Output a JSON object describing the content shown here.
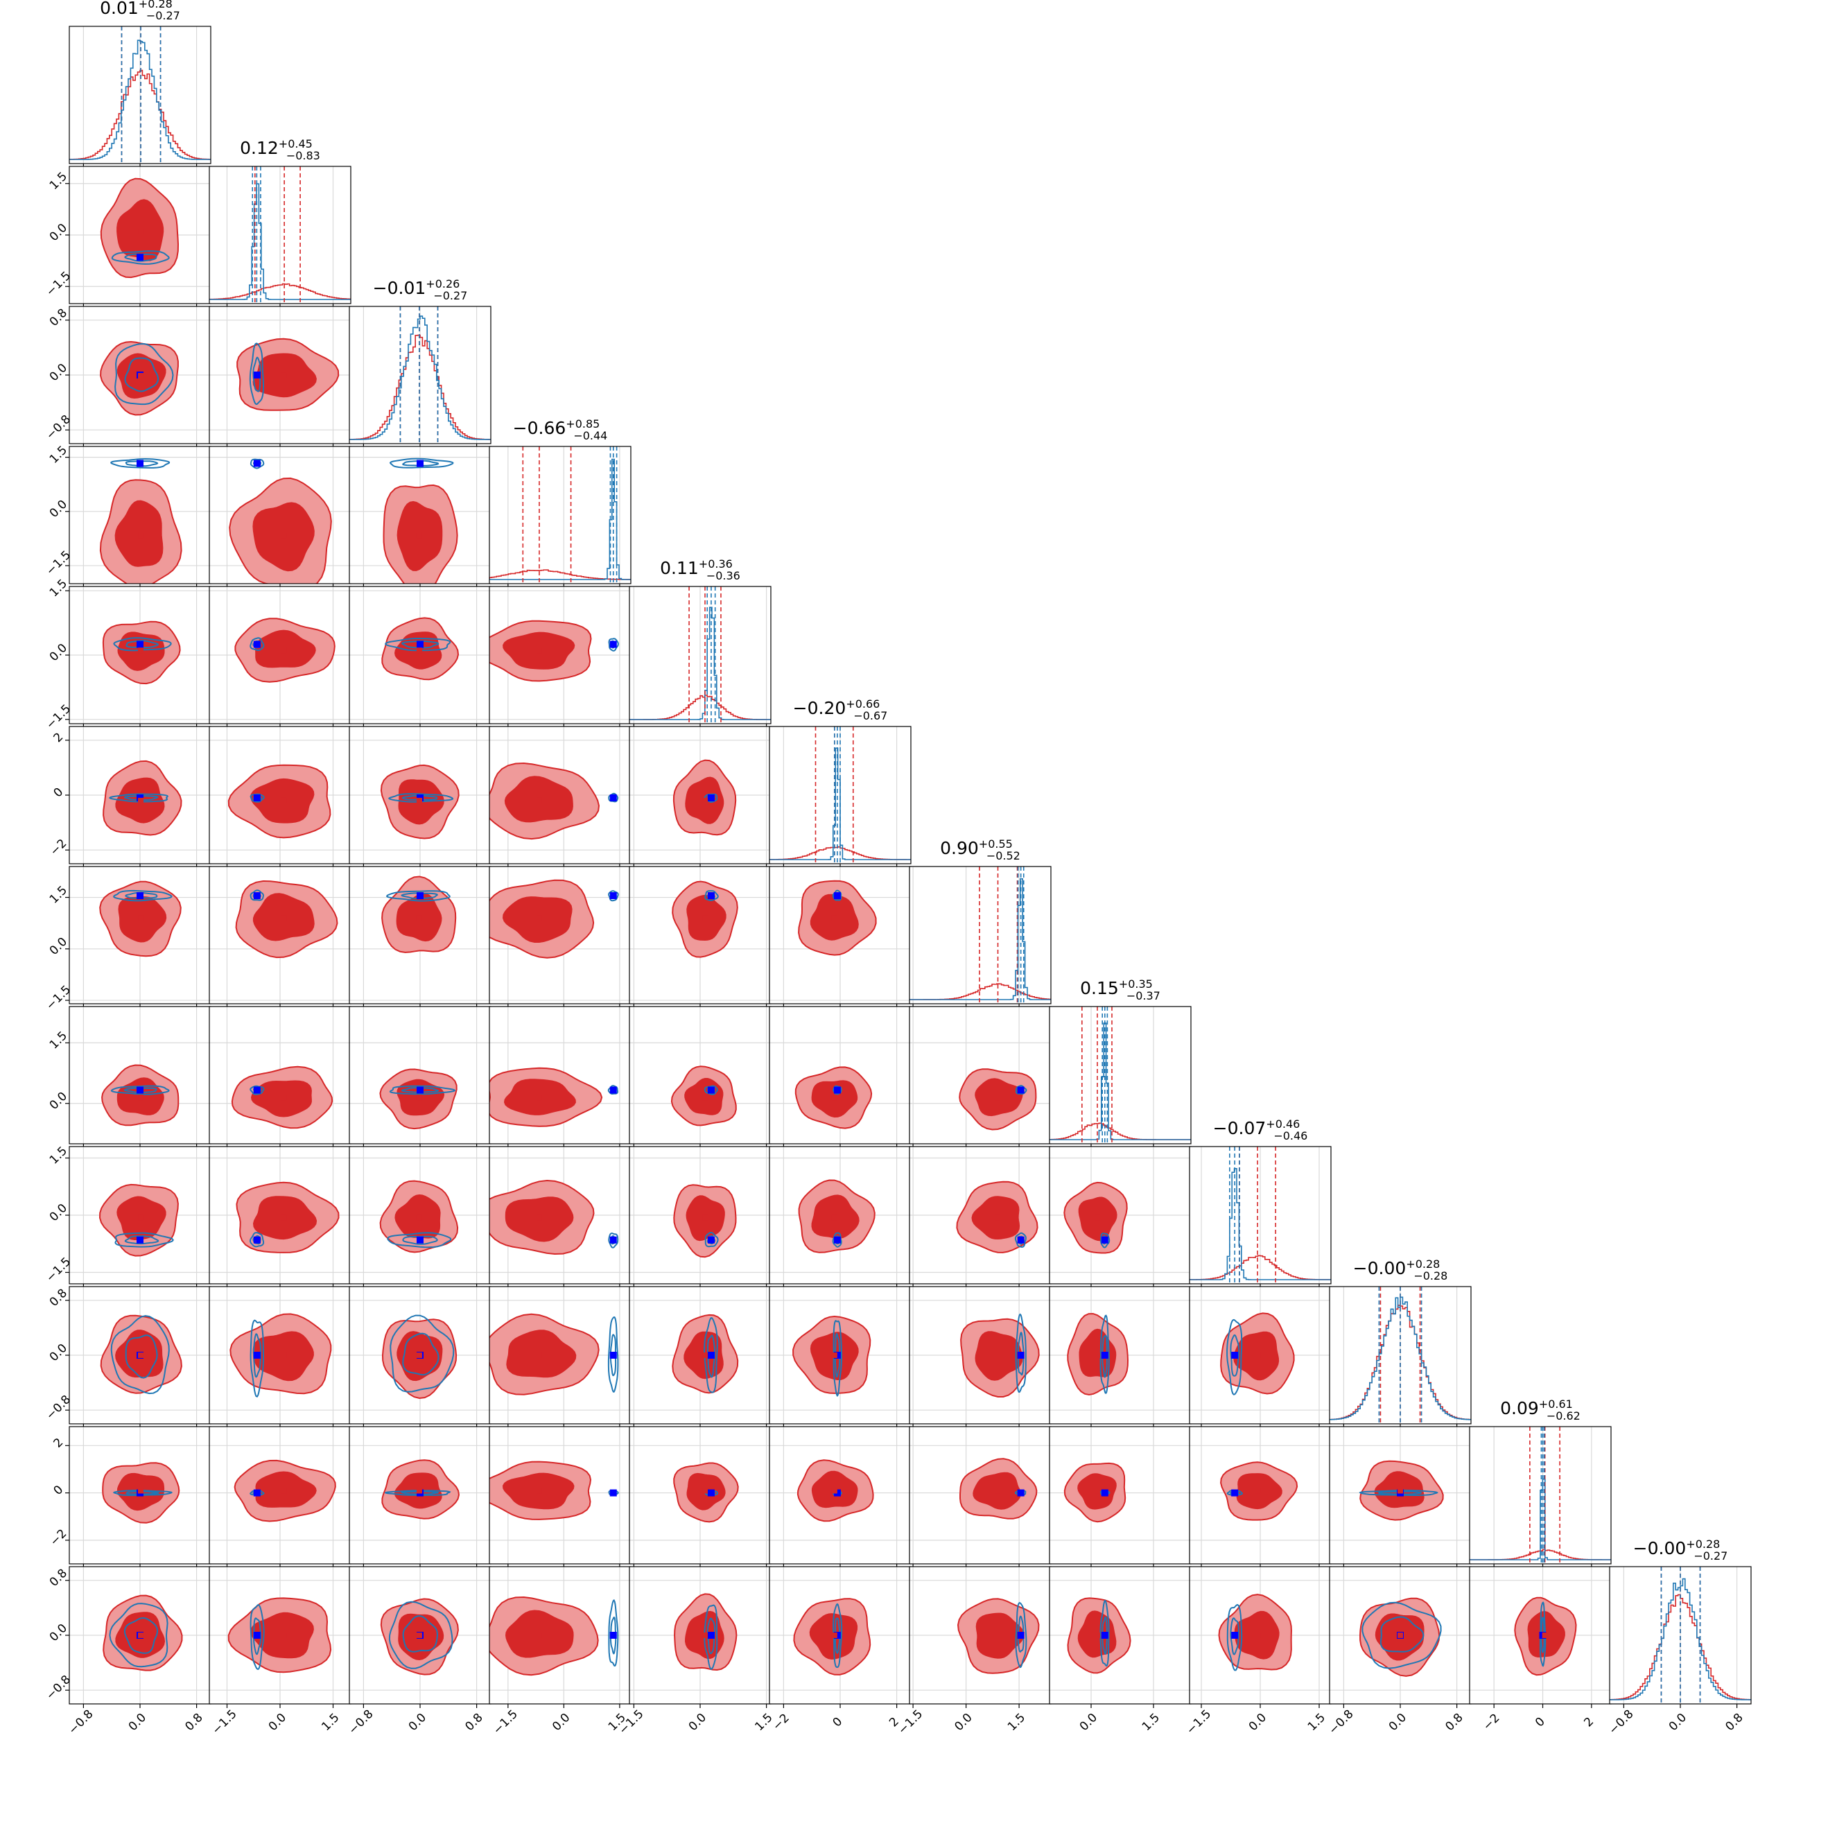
{
  "chart_data": {
    "type": "corner",
    "n_params": 12,
    "colors": {
      "posterior_a": "#d62728",
      "posterior_a_inner": "#d62728",
      "posterior_a_outer": "#ef9a9a",
      "posterior_b": "#1f77b4",
      "truth_marker": "#0000ff",
      "grid": "#d9d9d9"
    },
    "grid": true,
    "series": [
      {
        "style": "filled contours + step histogram + dashed quantiles",
        "color": "#d62728"
      },
      {
        "style": "line contours + step histogram + dashed quantiles",
        "color": "#1f77b4"
      }
    ],
    "titles": [
      {
        "median": "0.01",
        "plus": "+0.28",
        "minus": "−0.27"
      },
      {
        "median": "0.12",
        "plus": "+0.45",
        "minus": "−0.83"
      },
      {
        "median": "−0.01",
        "plus": "+0.26",
        "minus": "−0.27"
      },
      {
        "median": "−0.66",
        "plus": "+0.85",
        "minus": "−0.44"
      },
      {
        "median": "0.11",
        "plus": "+0.36",
        "minus": "−0.36"
      },
      {
        "median": "−0.20",
        "plus": "+0.66",
        "minus": "−0.67"
      },
      {
        "median": "0.90",
        "plus": "+0.55",
        "minus": "−0.52"
      },
      {
        "median": "0.15",
        "plus": "+0.35",
        "minus": "−0.37"
      },
      {
        "median": "−0.07",
        "plus": "+0.46",
        "minus": "−0.46"
      },
      {
        "median": "−0.00",
        "plus": "+0.28",
        "minus": "−0.28"
      },
      {
        "median": "0.09",
        "plus": "+0.61",
        "minus": "−0.62"
      },
      {
        "median": "−0.00",
        "plus": "+0.28",
        "minus": "−0.27"
      }
    ],
    "params": [
      {
        "range": [
          -1.0,
          1.0
        ],
        "ticks": [
          -0.8,
          0.0,
          0.8
        ],
        "tick_labels": [
          "−0.8",
          "0.0",
          "0.8"
        ],
        "red": {
          "mean": 0.01,
          "sd": 0.27
        },
        "blue": {
          "mean": 0.02,
          "sd": 0.2
        },
        "red_q": [
          -0.26,
          0.01,
          0.29
        ],
        "blue_q": [
          -0.26,
          0.01,
          0.29
        ],
        "truth": 0.0
      },
      {
        "range": [
          -2.0,
          2.0
        ],
        "ticks": [
          -1.5,
          0.0,
          1.5
        ],
        "tick_labels": [
          "−1.5",
          "0.0",
          "1.5"
        ],
        "red": {
          "mean": 0.1,
          "sd": 0.7
        },
        "blue": {
          "mean": -0.65,
          "sd": 0.09
        },
        "red_q": [
          -0.71,
          0.12,
          0.57
        ],
        "blue_q": [
          -0.78,
          -0.66,
          -0.55
        ],
        "truth": -0.65
      },
      {
        "range": [
          -1.0,
          1.0
        ],
        "ticks": [
          -0.8,
          0.0,
          0.8
        ],
        "tick_labels": [
          "−0.8",
          "0.0",
          "0.8"
        ],
        "red": {
          "mean": -0.01,
          "sd": 0.26
        },
        "blue": {
          "mean": 0.0,
          "sd": 0.22
        },
        "red_q": [
          -0.28,
          -0.01,
          0.25
        ],
        "blue_q": [
          -0.28,
          -0.01,
          0.25
        ],
        "truth": 0.0
      },
      {
        "range": [
          -2.0,
          1.8
        ],
        "ticks": [
          -1.5,
          0.0,
          1.5
        ],
        "tick_labels": [
          "−1.5",
          "0.0",
          "1.5"
        ],
        "red": {
          "mean": -0.66,
          "sd": 0.75
        },
        "blue": {
          "mean": 1.33,
          "sd": 0.06
        },
        "red_q": [
          -1.1,
          -0.66,
          0.19
        ],
        "blue_q": [
          1.25,
          1.33,
          1.42
        ],
        "truth": 1.33
      },
      {
        "range": [
          -1.6,
          1.6
        ],
        "ticks": [
          -1.5,
          0.0,
          1.5
        ],
        "tick_labels": [
          "−1.5",
          "0.0",
          "1.5"
        ],
        "red": {
          "mean": 0.11,
          "sd": 0.35
        },
        "blue": {
          "mean": 0.25,
          "sd": 0.07
        },
        "red_q": [
          -0.25,
          0.11,
          0.47
        ],
        "blue_q": [
          0.16,
          0.25,
          0.34
        ],
        "truth": 0.25
      },
      {
        "range": [
          -2.5,
          2.5
        ],
        "ticks": [
          -2,
          0,
          2
        ],
        "tick_labels": [
          "−2",
          "0",
          "2"
        ],
        "red": {
          "mean": -0.2,
          "sd": 0.66
        },
        "blue": {
          "mean": -0.1,
          "sd": 0.07
        },
        "red_q": [
          -0.87,
          -0.2,
          0.46
        ],
        "blue_q": [
          -0.2,
          -0.1,
          0.0
        ],
        "truth": -0.1
      },
      {
        "range": [
          -1.6,
          2.4
        ],
        "ticks": [
          -1.5,
          0.0,
          1.5
        ],
        "tick_labels": [
          "−1.5",
          "0.0",
          "1.5"
        ],
        "red": {
          "mean": 0.9,
          "sd": 0.54
        },
        "blue": {
          "mean": 1.55,
          "sd": 0.07
        },
        "red_q": [
          0.38,
          0.9,
          1.45
        ],
        "blue_q": [
          1.47,
          1.55,
          1.63
        ],
        "truth": 1.55
      },
      {
        "range": [
          -1.0,
          2.4
        ],
        "ticks": [
          0.0,
          1.5
        ],
        "tick_labels": [
          "0.0",
          "1.5"
        ],
        "red": {
          "mean": 0.15,
          "sd": 0.36
        },
        "blue": {
          "mean": 0.33,
          "sd": 0.05
        },
        "red_q": [
          -0.22,
          0.15,
          0.5
        ],
        "blue_q": [
          0.27,
          0.33,
          0.39
        ],
        "truth": 0.33
      },
      {
        "range": [
          -1.8,
          1.8
        ],
        "ticks": [
          -1.5,
          0.0,
          1.5
        ],
        "tick_labels": [
          "−1.5",
          "0.0",
          "1.5"
        ],
        "red": {
          "mean": -0.07,
          "sd": 0.46
        },
        "blue": {
          "mean": -0.65,
          "sd": 0.09
        },
        "red_q": [
          -0.53,
          -0.07,
          0.39
        ],
        "blue_q": [
          -0.78,
          -0.65,
          -0.53
        ],
        "truth": -0.65
      },
      {
        "range": [
          -1.0,
          1.0
        ],
        "ticks": [
          -0.8,
          0.0,
          0.8
        ],
        "tick_labels": [
          "−0.8",
          "0.0",
          "0.8"
        ],
        "red": {
          "mean": 0.0,
          "sd": 0.28
        },
        "blue": {
          "mean": 0.0,
          "sd": 0.27
        },
        "red_q": [
          -0.28,
          0.0,
          0.28
        ],
        "blue_q": [
          -0.3,
          0.0,
          0.3
        ],
        "truth": 0.0
      },
      {
        "range": [
          -3.0,
          2.8
        ],
        "ticks": [
          -2,
          0,
          2
        ],
        "tick_labels": [
          "−2",
          "0",
          "2"
        ],
        "red": {
          "mean": 0.09,
          "sd": 0.61
        },
        "blue": {
          "mean": 0.0,
          "sd": 0.05
        },
        "red_q": [
          -0.53,
          0.09,
          0.7
        ],
        "blue_q": [
          -0.06,
          0.0,
          0.06
        ],
        "truth": 0.0
      },
      {
        "range": [
          -1.0,
          1.0
        ],
        "ticks": [
          -0.8,
          0.0,
          0.8
        ],
        "tick_labels": [
          "−0.8",
          "0.0",
          "0.8"
        ],
        "red": {
          "mean": 0.0,
          "sd": 0.27
        },
        "blue": {
          "mean": 0.0,
          "sd": 0.23
        },
        "red_q": [
          -0.27,
          0.0,
          0.28
        ],
        "blue_q": [
          -0.27,
          0.0,
          0.28
        ],
        "truth": 0.0
      }
    ]
  }
}
